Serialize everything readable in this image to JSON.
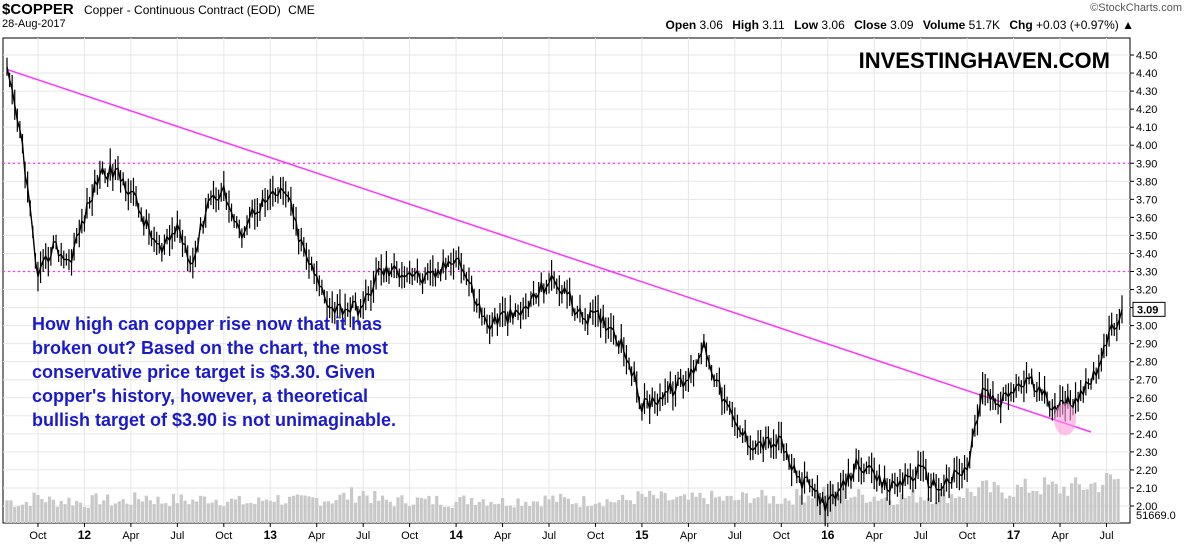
{
  "header": {
    "symbol": "$COPPER",
    "description": "Copper - Continuous Contract (EOD)",
    "exchange": "CME",
    "date": "28-Aug-2017",
    "brand": "©StockCharts.com",
    "open_label": "Open",
    "open_value": "3.06",
    "high_label": "High",
    "high_value": "3.11",
    "low_label": "Low",
    "low_value": "3.06",
    "close_label": "Close",
    "close_value": "3.09",
    "volume_label": "Volume",
    "volume_value": "51.7K",
    "chg_label": "Chg",
    "chg_value": "+0.03 (+0.97%)",
    "chg_arrow": "▲"
  },
  "watermark": "INVESTINGHAVEN.COM",
  "annotation": [
    "How high can copper rise now that it has",
    "broken out? Based on the chart, the most",
    "conservative price target is $3.30. Given",
    "copper's history, however, a theoretical",
    "bullish target of $3.90 is not unimaginable."
  ],
  "colors": {
    "price_line": "#000000",
    "trendline": "#ff33ff",
    "target_lines": "#ff33ff",
    "highlight_ellipse": "#ff99dd",
    "annotation_text": "#1a1acc",
    "volume_bars": "#c8c8c8",
    "grid": "#e6e6e6"
  },
  "chart_data": {
    "type": "line",
    "title": "$COPPER",
    "ylabel": "",
    "ylim": [
      1.95,
      4.55
    ],
    "y_ticks": [
      "4.50",
      "4.40",
      "4.30",
      "4.20",
      "4.10",
      "4.00",
      "3.90",
      "3.80",
      "3.70",
      "3.60",
      "3.50",
      "3.40",
      "3.30",
      "3.20",
      "3.10",
      "3.00",
      "2.90",
      "2.80",
      "2.70",
      "2.60",
      "2.50",
      "2.40",
      "2.30",
      "2.20",
      "2.10",
      "2.00"
    ],
    "x_ticks": [
      "Oct",
      "12",
      "Apr",
      "Jul",
      "Oct",
      "13",
      "Apr",
      "Jul",
      "Oct",
      "14",
      "Apr",
      "Jul",
      "Oct",
      "15",
      "Apr",
      "Jul",
      "Oct",
      "16",
      "Apr",
      "Jul",
      "Oct",
      "17",
      "Apr",
      "Jul"
    ],
    "x": [
      "2011-08",
      "2011-09",
      "2011-10",
      "2011-11",
      "2011-12",
      "2012-01",
      "2012-02",
      "2012-03",
      "2012-04",
      "2012-05",
      "2012-06",
      "2012-07",
      "2012-08",
      "2012-09",
      "2012-10",
      "2012-11",
      "2012-12",
      "2013-01",
      "2013-02",
      "2013-03",
      "2013-04",
      "2013-05",
      "2013-06",
      "2013-07",
      "2013-08",
      "2013-09",
      "2013-10",
      "2013-11",
      "2013-12",
      "2014-01",
      "2014-02",
      "2014-03",
      "2014-04",
      "2014-05",
      "2014-06",
      "2014-07",
      "2014-08",
      "2014-09",
      "2014-10",
      "2014-11",
      "2014-12",
      "2015-01",
      "2015-02",
      "2015-03",
      "2015-04",
      "2015-05",
      "2015-06",
      "2015-07",
      "2015-08",
      "2015-09",
      "2015-10",
      "2015-11",
      "2015-12",
      "2016-01",
      "2016-02",
      "2016-03",
      "2016-04",
      "2016-05",
      "2016-06",
      "2016-07",
      "2016-08",
      "2016-09",
      "2016-10",
      "2016-11",
      "2016-12",
      "2017-01",
      "2017-02",
      "2017-03",
      "2017-04",
      "2017-05",
      "2017-06",
      "2017-07",
      "2017-08"
    ],
    "series": [
      {
        "values": [
          4.4,
          4.0,
          3.25,
          3.45,
          3.35,
          3.6,
          3.85,
          3.85,
          3.75,
          3.55,
          3.4,
          3.55,
          3.35,
          3.7,
          3.75,
          3.5,
          3.65,
          3.7,
          3.75,
          3.45,
          3.25,
          3.1,
          3.1,
          3.1,
          3.3,
          3.3,
          3.3,
          3.25,
          3.3,
          3.4,
          3.2,
          3.0,
          3.05,
          3.05,
          3.15,
          3.25,
          3.2,
          3.05,
          3.05,
          3.0,
          2.85,
          2.55,
          2.6,
          2.65,
          2.7,
          2.9,
          2.65,
          2.45,
          2.35,
          2.35,
          2.35,
          2.15,
          2.1,
          2.0,
          2.1,
          2.25,
          2.15,
          2.1,
          2.15,
          2.2,
          2.1,
          2.15,
          2.2,
          2.65,
          2.55,
          2.65,
          2.7,
          2.6,
          2.55,
          2.6,
          2.7,
          2.9,
          3.09
        ]
      }
    ],
    "volume": {
      "last_label": "51669.0",
      "values": [
        0.3,
        0.25,
        0.35,
        0.28,
        0.3,
        0.26,
        0.32,
        0.27,
        0.3,
        0.35,
        0.28,
        0.31,
        0.29,
        0.33,
        0.3,
        0.28,
        0.26,
        0.34,
        0.3,
        0.29,
        0.32,
        0.31,
        0.36,
        0.4,
        0.3,
        0.28,
        0.31,
        0.29,
        0.3,
        0.27,
        0.33,
        0.31,
        0.28,
        0.3,
        0.29,
        0.32,
        0.3,
        0.28,
        0.31,
        0.29,
        0.3,
        0.35,
        0.33,
        0.31,
        0.3,
        0.34,
        0.32,
        0.3,
        0.36,
        0.33,
        0.31,
        0.35,
        0.4,
        0.42,
        0.38,
        0.36,
        0.35,
        0.33,
        0.34,
        0.36,
        0.35,
        0.37,
        0.4,
        0.45,
        0.42,
        0.44,
        0.46,
        0.48,
        0.45,
        0.47,
        0.5,
        0.55,
        0.58
      ]
    },
    "trendline": {
      "start": {
        "x": "2011-08",
        "y": 4.42
      },
      "end": {
        "x": "2017-06",
        "y": 2.41
      }
    },
    "target_lines": [
      3.9,
      3.3
    ],
    "last_value_label": "3.09",
    "grid": true
  }
}
